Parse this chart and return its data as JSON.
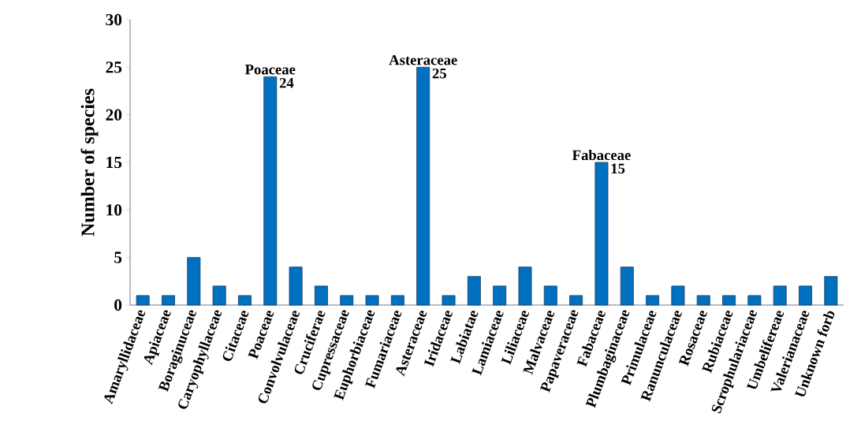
{
  "chart_data": {
    "type": "bar",
    "ylabel": "Number of species",
    "categories": [
      "Amaryllidaceae",
      "Apiaceae",
      "Boraginuceae",
      "Caryophyllaceae",
      "Citaceae",
      "Poaceae",
      "Convolvulaceae",
      "Cruciferae",
      "Cupressaceae",
      "Euphorbiaceae",
      "Fumariaceae",
      "Asteraceae",
      "Iridaceae",
      "Labiatae",
      "Lamiaceae",
      "Liliaceae",
      "Malvaceae",
      "Papaveraceae",
      "Fabaceae",
      "Plumbaginaceae",
      "Primulaceae",
      "Ranunculaceae",
      "Rosaceae",
      "Rubiaceae",
      "Scrophulariaceae",
      "Umbelifereae",
      "Valerianaceae",
      "Unknown forb"
    ],
    "values": [
      1,
      1,
      5,
      2,
      1,
      24,
      4,
      2,
      1,
      1,
      1,
      25,
      1,
      3,
      2,
      4,
      2,
      1,
      15,
      4,
      1,
      2,
      1,
      1,
      1,
      2,
      2,
      3
    ],
    "value_labels": [
      null,
      null,
      null,
      null,
      null,
      "24",
      null,
      null,
      null,
      null,
      null,
      "25",
      null,
      null,
      null,
      null,
      null,
      null,
      "15",
      null,
      null,
      null,
      null,
      null,
      null,
      null,
      null,
      null
    ],
    "color": "#0070c0",
    "annotations": [
      {
        "text": "Poaceae",
        "x": "Poaceae",
        "y": 24
      },
      {
        "text": "Asteraceae",
        "x": "Asteraceae",
        "y": 25
      },
      {
        "text": "Fabaceae",
        "x": "Fabaceae",
        "y": 15
      }
    ],
    "ylim": [
      0,
      30
    ],
    "yticks": [
      0,
      5,
      10,
      15,
      20,
      25,
      30
    ],
    "grid": false
  }
}
